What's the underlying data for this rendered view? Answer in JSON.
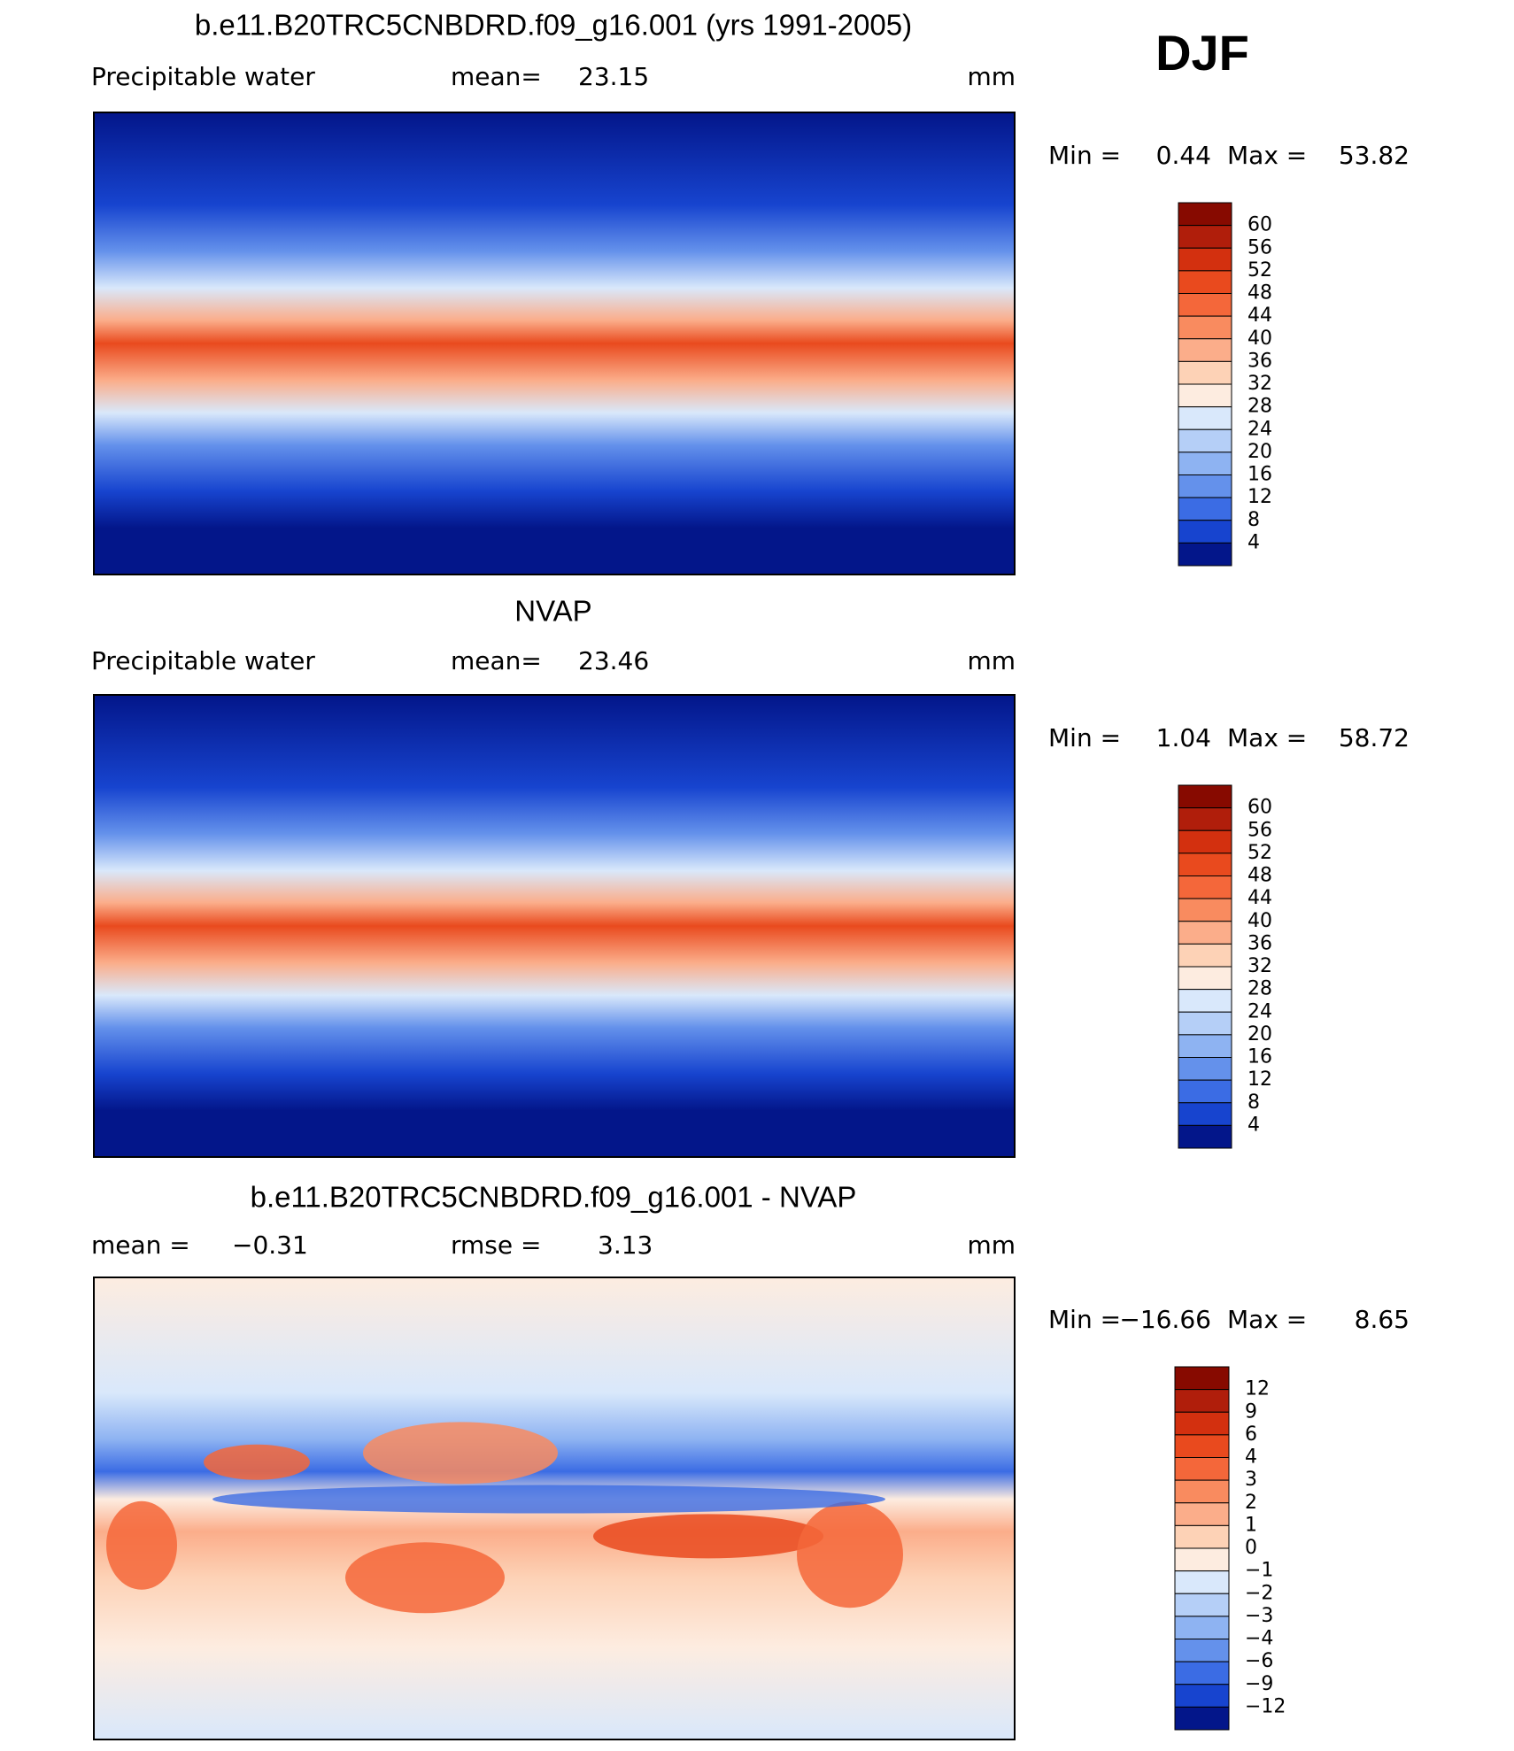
{
  "header": {
    "season": "DJF"
  },
  "panels": [
    {
      "title": "b.e11.B20TRC5CNBDRD.f09_g16.001 (yrs 1991-2005)",
      "left_label": "Precipitable  water",
      "center_label": "mean=",
      "center_value": 23.15,
      "units": "mm",
      "min_label": "Min =",
      "min": 0.44,
      "max_label": "Max =",
      "max": 53.82,
      "levels": [
        60,
        56,
        52,
        48,
        44,
        40,
        36,
        32,
        28,
        24,
        20,
        16,
        12,
        8,
        4
      ],
      "colors": [
        "#870a00",
        "#b01e0b",
        "#d3300f",
        "#e94a1e",
        "#f4673a",
        "#f98b5f",
        "#fbad8a",
        "#fdd2b6",
        "#fdece0",
        "#d9e8fb",
        "#b5cff7",
        "#8eb3f2",
        "#6491eb",
        "#3b6ce4",
        "#1744cf",
        "#03168a"
      ]
    },
    {
      "title": "NVAP",
      "left_label": "Precipitable  water",
      "center_label": "mean=",
      "center_value": 23.46,
      "units": "mm",
      "min_label": "Min =",
      "min": 1.04,
      "max_label": "Max =",
      "max": 58.72,
      "levels": [
        60,
        56,
        52,
        48,
        44,
        40,
        36,
        32,
        28,
        24,
        20,
        16,
        12,
        8,
        4
      ],
      "colors": [
        "#870a00",
        "#b01e0b",
        "#d3300f",
        "#e94a1e",
        "#f4673a",
        "#f98b5f",
        "#fbad8a",
        "#fdd2b6",
        "#fdece0",
        "#d9e8fb",
        "#b5cff7",
        "#8eb3f2",
        "#6491eb",
        "#3b6ce4",
        "#1744cf",
        "#03168a"
      ]
    },
    {
      "title": "b.e11.B20TRC5CNBDRD.f09_g16.001 - NVAP",
      "left_label": "mean  =",
      "left_value": "−0.31",
      "center_label": "rmse  =",
      "center_value": 3.13,
      "units": "mm",
      "min_label": "Min  =",
      "min": "−16.66",
      "max_label": "Max  =",
      "max": 8.65,
      "levels": [
        12,
        9,
        6,
        4,
        3,
        2,
        1,
        0,
        "−1",
        "−2",
        "−3",
        "−4",
        "−6",
        "−9",
        "−12"
      ],
      "colors": [
        "#870a00",
        "#b01e0b",
        "#d3300f",
        "#e94a1e",
        "#f4673a",
        "#f98b5f",
        "#fbad8a",
        "#fdd2b6",
        "#fdece0",
        "#d9e8fb",
        "#b5cff7",
        "#8eb3f2",
        "#6491eb",
        "#3b6ce4",
        "#1744cf",
        "#03168a"
      ]
    }
  ]
}
